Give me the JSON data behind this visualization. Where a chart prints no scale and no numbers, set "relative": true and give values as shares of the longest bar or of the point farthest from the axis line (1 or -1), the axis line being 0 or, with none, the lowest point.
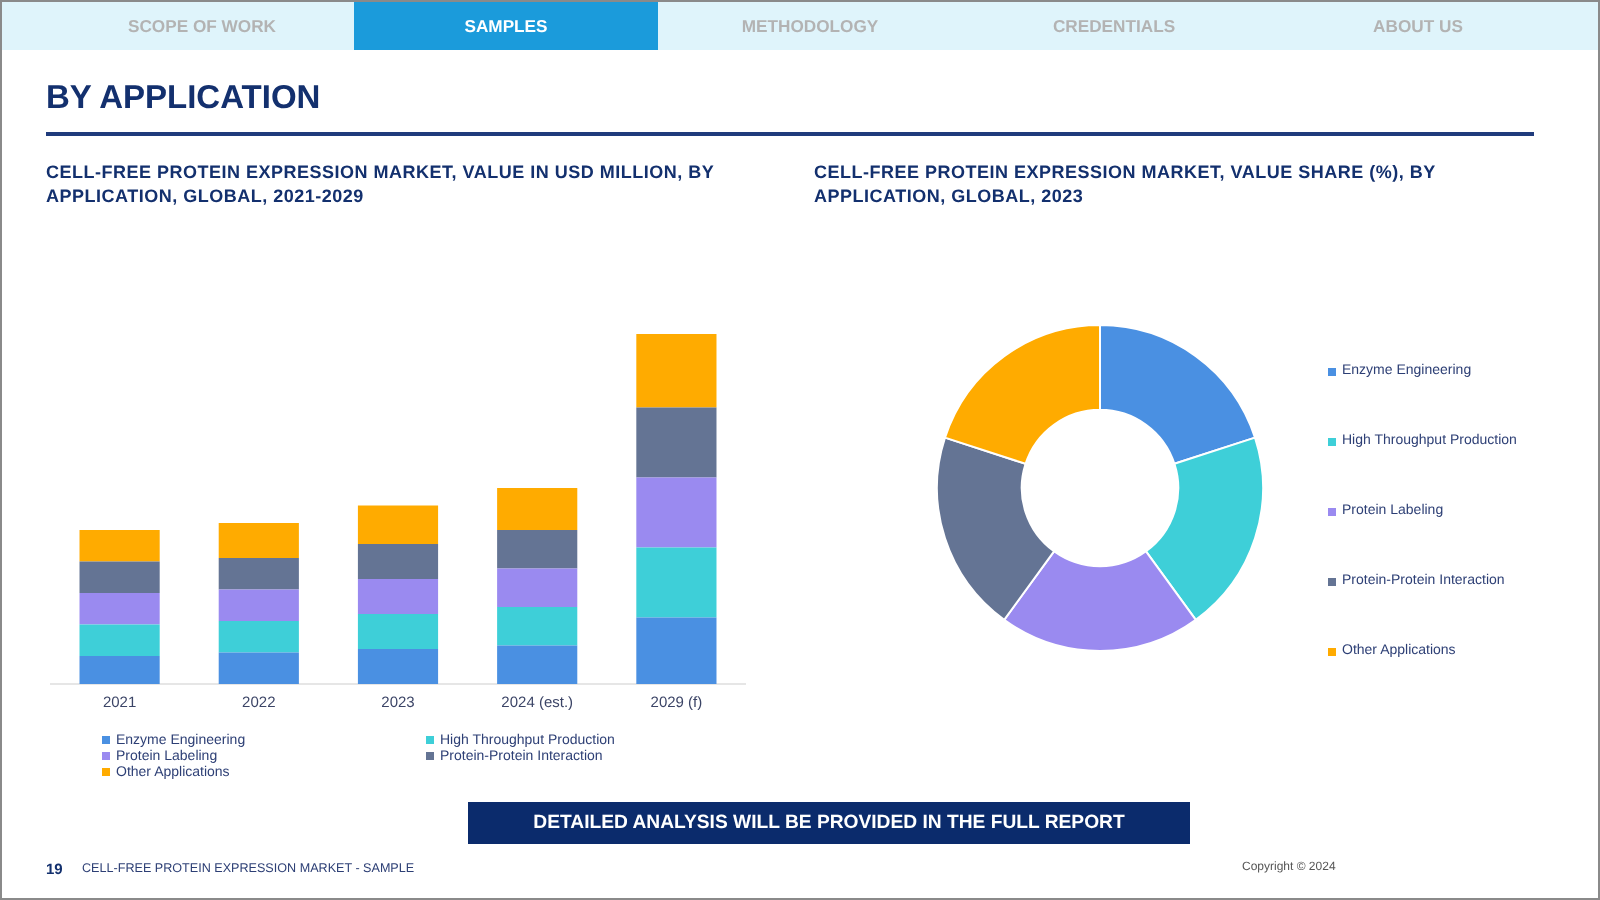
{
  "chart_data": [
    {
      "type": "other",
      "title": "BY APPLICATION",
      "annotations": [
        "SCOPE OF WORK",
        "SAMPLES",
        "METHODOLOGY",
        "CREDENTIALS",
        "ABOUT US"
      ]
    },
    {
      "type": "bar",
      "title": "CELL-FREE PROTEIN EXPRESSION MARKET, VALUE IN USD MILLION, BY APPLICATION, GLOBAL, 2021-2029",
      "categories": [
        "2021",
        "2022",
        "2023",
        "2024 (est.)",
        "2029 (f)"
      ],
      "stacked": true,
      "relative": true,
      "legend": "bottom",
      "series": [
        {
          "name": "Enzyme Engineering",
          "color": "#4a90e2",
          "values": [
            0.08,
            0.09,
            0.1,
            0.11,
            0.19
          ]
        },
        {
          "name": "High Throughput Production",
          "color": "#3ecfd8",
          "values": [
            0.09,
            0.09,
            0.1,
            0.11,
            0.2
          ]
        },
        {
          "name": "Protein Labeling",
          "color": "#9a8af0",
          "values": [
            0.09,
            0.09,
            0.1,
            0.11,
            0.2
          ]
        },
        {
          "name": "Protein-Protein Interaction",
          "color": "#647494",
          "values": [
            0.09,
            0.09,
            0.1,
            0.11,
            0.2
          ]
        },
        {
          "name": "Other Applications",
          "color": "#ffab00",
          "values": [
            0.09,
            0.1,
            0.11,
            0.12,
            0.21
          ]
        }
      ]
    },
    {
      "type": "donut",
      "title": "CELL-FREE PROTEIN EXPRESSION MARKET, VALUE SHARE (%), BY APPLICATION, GLOBAL, 2023",
      "categories": [
        "Enzyme Engineering",
        "High Throughput Production",
        "Protein Labeling",
        "Protein-Protein Interaction",
        "Other Applications"
      ],
      "values": [
        20,
        20,
        20,
        20,
        20
      ],
      "colors": [
        "#4a90e2",
        "#3ecfd8",
        "#9a8af0",
        "#647494",
        "#ffab00"
      ],
      "legend": "right"
    },
    {
      "type": "other",
      "annotations": [
        "DETAILED ANALYSIS WILL BE PROVIDED IN THE FULL REPORT",
        "19",
        "CELL-FREE PROTEIN EXPRESSION MARKET - SAMPLE",
        "Copyright © 2024"
      ]
    }
  ]
}
